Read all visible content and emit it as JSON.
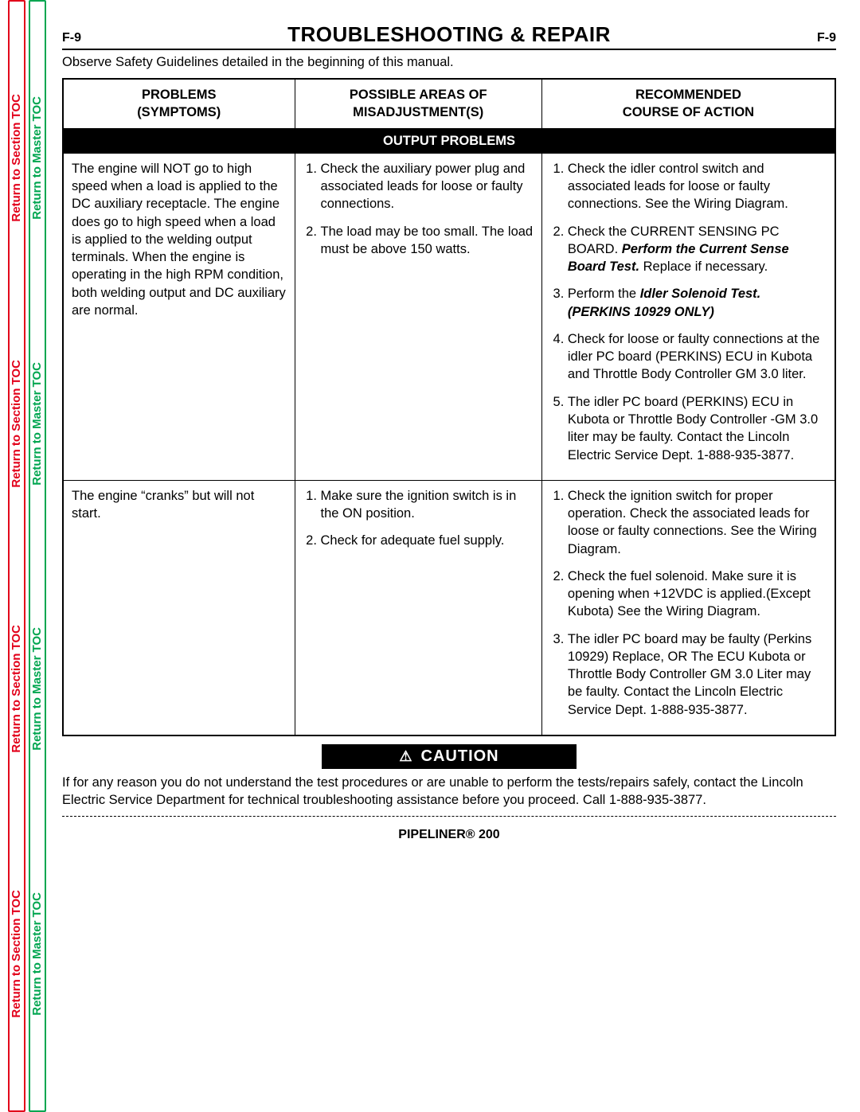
{
  "colors": {
    "red": "#e2001a",
    "green": "#00a650",
    "black": "#000000",
    "white": "#ffffff"
  },
  "side_tabs": {
    "section": "Return to Section TOC",
    "master": "Return to Master TOC",
    "repeat_count": 4
  },
  "header": {
    "page_num": "F-9",
    "title": "TROUBLESHOOTING & REPAIR"
  },
  "intro": "Observe Safety Guidelines detailed in the beginning of this manual.",
  "table": {
    "columns": [
      {
        "line1": "PROBLEMS",
        "line2": "(SYMPTOMS)"
      },
      {
        "line1": "POSSIBLE AREAS OF",
        "line2": "MISADJUSTMENT(S)"
      },
      {
        "line1": "RECOMMENDED",
        "line2": "COURSE OF ACTION"
      }
    ],
    "section_label": "OUTPUT PROBLEMS",
    "rows": [
      {
        "problem": "The engine will NOT go to high speed when a load is applied to the DC auxiliary receptacle. The engine does go to high speed when a load is applied to the welding output terminals.  When the engine is operating in the high RPM condition, both welding output and DC auxiliary are normal.",
        "misadjust": [
          "Check the auxiliary power plug and associated leads for loose or faulty connections.",
          "The load may be too small. The load must be above 150 watts."
        ],
        "action_html": [
          "Check the idler control switch and associated leads for loose or faulty connections. See the Wiring Diagram.",
          "Check the CURRENT SENSING PC BOARD. <span class=\"bi\">Perform the Current Sense Board Test.</span> Replace if necessary.",
          "Perform the <span class=\"bi\">Idler Solenoid Test. (PERKINS 10929 ONLY)</span>",
          "Check for loose or faulty connections at the idler PC board (PERKINS) ECU in Kubota and Throttle Body Controller GM 3.0 liter.",
          "The idler PC board (PERKINS) ECU in Kubota or Throttle Body Controller -GM 3.0 liter may be faulty. Contact the Lincoln Electric Service Dept. 1-888-935-3877."
        ]
      },
      {
        "problem": "The engine “cranks” but will not start.",
        "misadjust": [
          "Make sure the ignition switch is in the ON position.",
          "Check for adequate fuel supply."
        ],
        "action_html": [
          "Check the ignition switch for proper operation. Check the associated leads for loose or faulty connections. See the Wiring Diagram.",
          "Check the fuel solenoid. Make sure it is opening when +12VDC is applied.(Except Kubota) See the Wiring Diagram.",
          "The idler PC board may be faulty (Perkins 10929) Replace, OR The ECU Kubota or Throttle Body Controller GM 3.0 Liter may be faulty. Contact the Lincoln Electric Service Dept. 1-888-935-3877."
        ]
      }
    ]
  },
  "caution": {
    "label": "CAUTION",
    "icon": "⚠",
    "text": "If for any reason you do not understand the test procedures or are unable to perform the tests/repairs safely, contact the Lincoln Electric Service Department for technical troubleshooting assistance before you proceed. Call 1-888-935-3877."
  },
  "footer": "PIPELINER® 200"
}
